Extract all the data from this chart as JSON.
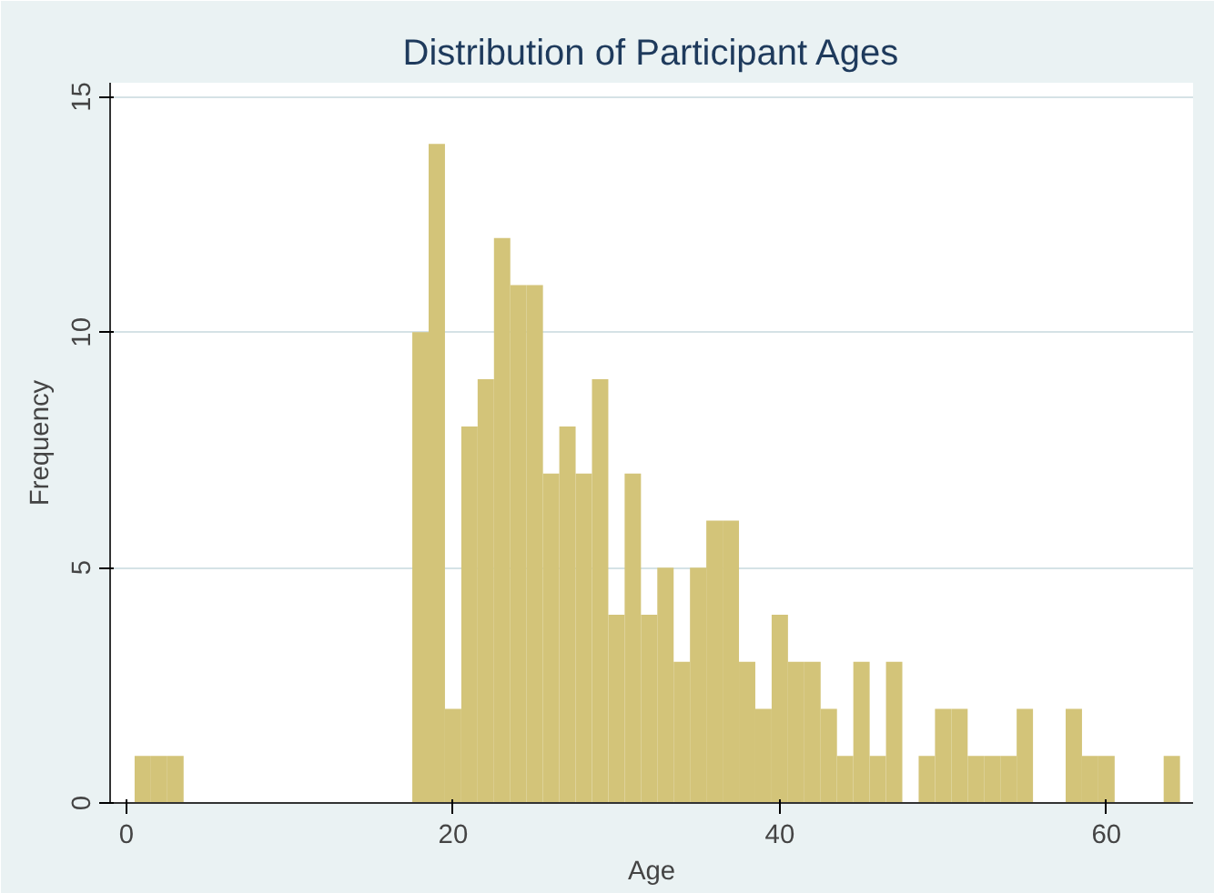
{
  "chart_data": {
    "type": "histogram",
    "title": "Distribution of Participant Ages",
    "xlabel": "Age",
    "ylabel": "Frequency",
    "bins": [
      0.5,
      1.5,
      2.5,
      3.5,
      17.5,
      18.5,
      19.5,
      20.5,
      21.5,
      22.5,
      23.5,
      24.5,
      25.5,
      26.5,
      27.5,
      28.5,
      29.5,
      30.5,
      31.5,
      32.5,
      33.5,
      34.5,
      35.5,
      36.5,
      37.5,
      38.5,
      39.5,
      40.5,
      41.5,
      42.5,
      43.5,
      44.5,
      45.5,
      46.5,
      47.5,
      48.5,
      49.5,
      50.5,
      51.5,
      52.5,
      53.5,
      54.5,
      55.5,
      57.5,
      58.5,
      59.5,
      60.5,
      63.5,
      64.5
    ],
    "values": [
      1,
      1,
      1,
      0,
      10,
      14,
      2,
      8,
      9,
      12,
      11,
      11,
      7,
      8,
      7,
      9,
      4,
      7,
      4,
      5,
      3,
      5,
      6,
      6,
      3,
      2,
      4,
      3,
      3,
      2,
      1,
      3,
      1,
      3,
      0,
      1,
      2,
      2,
      1,
      1,
      1,
      2,
      0,
      2,
      1,
      1,
      0,
      1
    ],
    "color": "#d3c479",
    "xlim": [
      -1,
      65.3
    ],
    "ylim": [
      0,
      15.3
    ],
    "xticks": [
      0,
      20,
      40,
      60
    ],
    "yticks": [
      0,
      5,
      10,
      15
    ],
    "grid": "y"
  }
}
